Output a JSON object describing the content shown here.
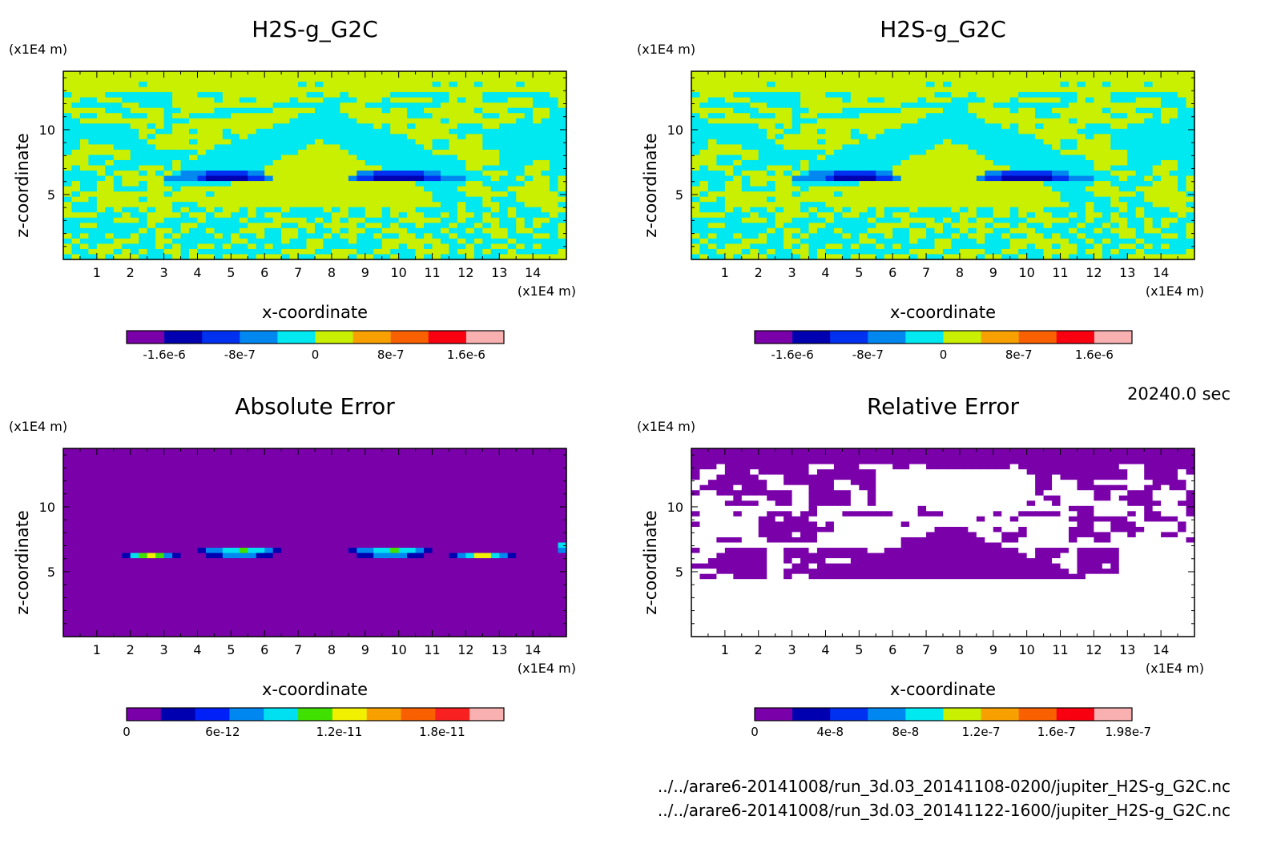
{
  "chart_data": [
    {
      "type": "heatmap",
      "title": "H2S-g_G2C",
      "xlabel": "x-coordinate",
      "ylabel": "z-coordinate",
      "xunit": "(x1E4 m)",
      "yunit": "(x1E4 m)",
      "xlim": [
        0,
        15
      ],
      "ylim": [
        0,
        14.5
      ],
      "xticks": [
        "1",
        "2",
        "3",
        "4",
        "5",
        "6",
        "7",
        "8",
        "9",
        "10",
        "11",
        "12",
        "13",
        "14"
      ],
      "yticks": [
        "5",
        "10"
      ],
      "colorbar": {
        "colors": [
          "#7a00aa",
          "#0000b0",
          "#0030f0",
          "#0088f0",
          "#00e8f0",
          "#c8f000",
          "#f8a000",
          "#f86000",
          "#f80010",
          "#f8b0b0"
        ],
        "tick_labels": [
          "-1.6e-6",
          "-8e-7",
          "0",
          "8e-7",
          "1.6e-6"
        ]
      }
    },
    {
      "type": "heatmap",
      "title": "H2S-g_G2C",
      "xlabel": "x-coordinate",
      "ylabel": "z-coordinate",
      "xunit": "(x1E4 m)",
      "yunit": "(x1E4 m)",
      "xlim": [
        0,
        15
      ],
      "ylim": [
        0,
        14.5
      ],
      "xticks": [
        "1",
        "2",
        "3",
        "4",
        "5",
        "6",
        "7",
        "8",
        "9",
        "10",
        "11",
        "12",
        "13",
        "14"
      ],
      "yticks": [
        "5",
        "10"
      ],
      "colorbar": {
        "colors": [
          "#7a00aa",
          "#0000b0",
          "#0030f0",
          "#0088f0",
          "#00e8f0",
          "#c8f000",
          "#f8a000",
          "#f86000",
          "#f80010",
          "#f8b0b0"
        ],
        "tick_labels": [
          "-1.6e-6",
          "-8e-7",
          "0",
          "8e-7",
          "1.6e-6"
        ]
      }
    },
    {
      "type": "heatmap",
      "title": "Absolute Error",
      "xlabel": "x-coordinate",
      "ylabel": "z-coordinate",
      "xunit": "(x1E4 m)",
      "yunit": "(x1E4 m)",
      "xlim": [
        0,
        15
      ],
      "ylim": [
        0,
        14.5
      ],
      "xticks": [
        "1",
        "2",
        "3",
        "4",
        "5",
        "6",
        "7",
        "8",
        "9",
        "10",
        "11",
        "12",
        "13",
        "14"
      ],
      "yticks": [
        "5",
        "10"
      ],
      "colorbar": {
        "colors": [
          "#7a00aa",
          "#0000b0",
          "#0020f8",
          "#0088f0",
          "#00e0f0",
          "#40e000",
          "#f0f000",
          "#f8a000",
          "#f86000",
          "#f82020",
          "#f8b0b0"
        ],
        "tick_labels": [
          "0",
          "6e-12",
          "1.2e-11",
          "1.8e-11"
        ]
      }
    },
    {
      "type": "heatmap",
      "title": "Relative Error",
      "xlabel": "x-coordinate",
      "ylabel": "z-coordinate",
      "xunit": "(x1E4 m)",
      "yunit": "(x1E4 m)",
      "xlim": [
        0,
        15
      ],
      "ylim": [
        0,
        14.5
      ],
      "xticks": [
        "1",
        "2",
        "3",
        "4",
        "5",
        "6",
        "7",
        "8",
        "9",
        "10",
        "11",
        "12",
        "13",
        "14"
      ],
      "yticks": [
        "5",
        "10"
      ],
      "colorbar": {
        "colors": [
          "#7a00aa",
          "#0000b0",
          "#0030f0",
          "#0088f0",
          "#00e8f0",
          "#c8f000",
          "#f8a000",
          "#f86000",
          "#f80010",
          "#f8b0b0"
        ],
        "tick_labels": [
          "0",
          "4e-8",
          "8e-8",
          "1.2e-7",
          "1.6e-7",
          "1.98e-7"
        ]
      }
    }
  ],
  "time_label": "20240.0 sec",
  "file_paths": [
    "../../arare6-20141008/run_3d.03_20141108-0200/jupiter_H2S-g_G2C.nc",
    "../../arare6-20141008/run_3d.03_20141122-1600/jupiter_H2S-g_G2C.nc"
  ],
  "colors": {
    "purple": "#7a00aa",
    "cyan": "#00e8f0",
    "yellow_green": "#c8f000",
    "white": "#ffffff"
  }
}
